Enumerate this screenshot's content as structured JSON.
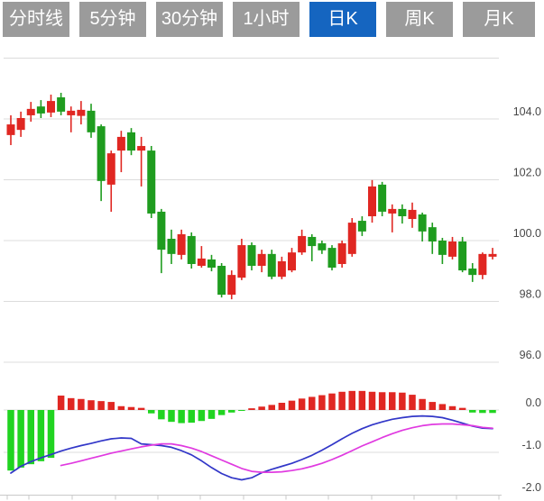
{
  "toolbar": {
    "tabs": [
      {
        "label": "分时线",
        "active": false
      },
      {
        "label": "5分钟",
        "active": false
      },
      {
        "label": "30分钟",
        "active": false
      },
      {
        "label": "1小时",
        "active": false
      },
      {
        "label": "日K",
        "active": true
      },
      {
        "label": "周K",
        "active": false
      },
      {
        "label": "月K",
        "active": false
      }
    ]
  },
  "colors": {
    "up": "#e02722",
    "down": "#1f9c1f",
    "macd_green": "#21d421",
    "macd_red": "#e02722",
    "dif_line": "#3237c8",
    "dea_line": "#e03ae0",
    "grid": "#dcdcdc",
    "axis": "#c9c9c9",
    "label": "#474747",
    "tab_bg": "#9b9b9b",
    "tab_active": "#1565c0"
  },
  "chart_data": {
    "type": "candlestick+macd",
    "title": "",
    "legend_position": "none",
    "grid": true,
    "price_axis": {
      "side": "right",
      "range": [
        95.4,
        106.3
      ],
      "gridlines": [
        106.0,
        104.0,
        102.0,
        100.0,
        98.0,
        96.0
      ],
      "ticks": [
        {
          "v": 104.0,
          "label": "104.0"
        },
        {
          "v": 102.0,
          "label": "102.0"
        },
        {
          "v": 100.0,
          "label": "100.0"
        },
        {
          "v": 98.0,
          "label": "98.0"
        },
        {
          "v": 96.0,
          "label": "96.0"
        }
      ]
    },
    "macd_axis": {
      "side": "right",
      "range": [
        -2.0,
        0.55
      ],
      "gridlines": [
        0.0,
        -1.0
      ],
      "ticks": [
        {
          "v": 0.0,
          "label": "0.0"
        },
        {
          "v": -1.0,
          "label": "-1.0"
        },
        {
          "v": -2.0,
          "label": "-2.0"
        }
      ]
    },
    "x_axis": {
      "ticks_x": [
        8,
        32,
        80,
        128,
        175,
        222,
        270,
        317,
        364,
        412,
        459,
        506,
        553
      ]
    },
    "candles_ohlc_order": [
      "open",
      "high",
      "low",
      "close"
    ],
    "candles": [
      [
        103.47,
        104.12,
        103.14,
        103.82
      ],
      [
        103.64,
        104.24,
        103.41,
        104.03
      ],
      [
        104.12,
        104.56,
        103.91,
        104.33
      ],
      [
        104.41,
        104.62,
        104.03,
        104.18
      ],
      [
        104.21,
        104.8,
        104.06,
        104.59
      ],
      [
        104.71,
        104.86,
        104.12,
        104.24
      ],
      [
        104.12,
        104.41,
        103.56,
        104.27
      ],
      [
        104.1,
        104.59,
        103.82,
        104.3
      ],
      [
        104.27,
        104.5,
        103.38,
        103.56
      ],
      [
        103.76,
        103.82,
        101.3,
        101.96
      ],
      [
        101.84,
        102.96,
        100.95,
        102.87
      ],
      [
        102.96,
        103.61,
        102.25,
        103.41
      ],
      [
        103.56,
        103.7,
        102.81,
        102.96
      ],
      [
        102.96,
        103.41,
        101.78,
        103.11
      ],
      [
        102.96,
        103.11,
        100.74,
        100.89
      ],
      [
        100.95,
        101.04,
        98.93,
        99.7
      ],
      [
        100.06,
        100.36,
        99.23,
        99.56
      ],
      [
        99.53,
        100.36,
        99.38,
        100.21
      ],
      [
        100.15,
        100.27,
        99.08,
        99.23
      ],
      [
        99.17,
        99.82,
        99.11,
        99.41
      ],
      [
        99.38,
        99.53,
        98.99,
        99.11
      ],
      [
        99.17,
        99.26,
        98.13,
        98.22
      ],
      [
        98.22,
        99.02,
        98.07,
        98.87
      ],
      [
        98.78,
        100.06,
        98.7,
        99.85
      ],
      [
        99.85,
        99.94,
        99.02,
        99.17
      ],
      [
        99.17,
        99.7,
        98.96,
        99.56
      ],
      [
        99.56,
        99.7,
        98.73,
        98.81
      ],
      [
        98.81,
        99.47,
        98.73,
        99.32
      ],
      [
        99.02,
        99.76,
        98.96,
        99.61
      ],
      [
        99.61,
        100.36,
        99.53,
        100.15
      ],
      [
        100.12,
        100.21,
        99.32,
        99.82
      ],
      [
        99.91,
        100.0,
        99.56,
        99.68
      ],
      [
        99.76,
        99.85,
        99.02,
        99.11
      ],
      [
        99.23,
        100.0,
        99.11,
        99.91
      ],
      [
        99.56,
        100.74,
        99.47,
        100.59
      ],
      [
        100.65,
        100.8,
        100.15,
        100.3
      ],
      [
        100.8,
        101.99,
        100.59,
        101.78
      ],
      [
        101.84,
        101.93,
        100.8,
        100.95
      ],
      [
        100.89,
        101.19,
        100.27,
        101.04
      ],
      [
        101.04,
        101.19,
        100.56,
        100.8
      ],
      [
        100.71,
        101.25,
        100.42,
        101.01
      ],
      [
        100.86,
        100.92,
        99.97,
        100.3
      ],
      [
        100.44,
        100.59,
        99.56,
        99.97
      ],
      [
        100.0,
        100.09,
        99.23,
        99.53
      ],
      [
        99.47,
        100.12,
        99.38,
        99.97
      ],
      [
        99.97,
        100.12,
        98.96,
        99.02
      ],
      [
        99.08,
        99.26,
        98.64,
        98.87
      ],
      [
        98.87,
        99.61,
        98.73,
        99.56
      ],
      [
        99.47,
        99.76,
        99.38,
        99.56
      ]
    ],
    "macd": {
      "histogram": [
        -1.43,
        -1.36,
        -1.28,
        -1.21,
        -1.13,
        0.34,
        0.28,
        0.26,
        0.23,
        0.21,
        0.19,
        0.09,
        0.07,
        0.05,
        -0.08,
        -0.22,
        -0.28,
        -0.31,
        -0.3,
        -0.26,
        -0.21,
        -0.12,
        -0.06,
        -0.02,
        0.04,
        0.08,
        0.12,
        0.17,
        0.22,
        0.27,
        0.31,
        0.35,
        0.39,
        0.43,
        0.45,
        0.45,
        0.43,
        0.42,
        0.42,
        0.41,
        0.36,
        0.26,
        0.19,
        0.14,
        0.09,
        0.05,
        -0.06,
        -0.07,
        -0.07
      ],
      "dif": [
        -1.49,
        -1.33,
        -1.22,
        -1.13,
        -1.05,
        -0.97,
        -0.9,
        -0.84,
        -0.79,
        -0.73,
        -0.68,
        -0.66,
        -0.67,
        -0.8,
        -0.82,
        -0.84,
        -0.88,
        -0.96,
        -1.06,
        -1.2,
        -1.36,
        -1.5,
        -1.6,
        -1.65,
        -1.6,
        -1.48,
        -1.4,
        -1.33,
        -1.26,
        -1.17,
        -1.07,
        -0.95,
        -0.82,
        -0.68,
        -0.55,
        -0.44,
        -0.35,
        -0.28,
        -0.22,
        -0.18,
        -0.15,
        -0.14,
        -0.15,
        -0.18,
        -0.24,
        -0.31,
        -0.38,
        -0.43,
        -0.44
      ],
      "dea": [
        null,
        null,
        null,
        null,
        null,
        -1.31,
        -1.26,
        -1.2,
        -1.14,
        -1.08,
        -1.02,
        -0.97,
        -0.92,
        -0.87,
        -0.83,
        -0.8,
        -0.8,
        -0.84,
        -0.9,
        -0.98,
        -1.08,
        -1.18,
        -1.28,
        -1.38,
        -1.45,
        -1.47,
        -1.47,
        -1.46,
        -1.43,
        -1.39,
        -1.33,
        -1.26,
        -1.17,
        -1.07,
        -0.96,
        -0.85,
        -0.75,
        -0.65,
        -0.56,
        -0.48,
        -0.42,
        -0.37,
        -0.34,
        -0.33,
        -0.33,
        -0.35,
        -0.37,
        -0.41,
        -0.43
      ]
    }
  }
}
